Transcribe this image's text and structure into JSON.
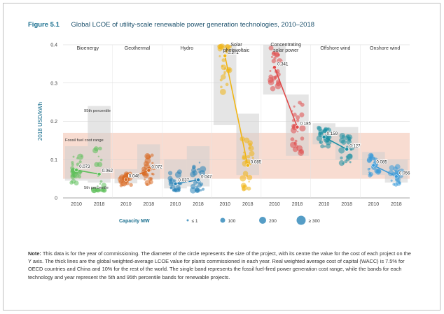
{
  "figure": {
    "number": "Figure 5.1",
    "title": "Global LCOE of utility-scale renewable power generation technologies, 2010–2018"
  },
  "note": {
    "label": "Note:",
    "text": "This data is for the year of commissioning. The diameter of the circle represents the size of the project, with its centre the value for the cost of each project on the Y axis. The thick lines are the global weighted-average LCOE value for plants commissioned in each year. Real weighted average cost of capital (WACC) is 7.5% for OECD countries and China and 10% for the rest of the world. The single band represents the fossil fuel-fired power generation cost range, while the bands for each technology and year represent the 5th and 95th percentile bands for renewable projects."
  },
  "colors": {
    "title": "#1a6f8f",
    "bioenergy": "#5cbf5a",
    "geothermal": "#d86a22",
    "hydro": "#2a84b8",
    "solar_pv": "#f0b514",
    "csp": "#e04a4a",
    "offshore_wind": "#1b8fa3",
    "onshore_wind": "#3a9ad8",
    "fossil_band": "#f7d6c9",
    "percentile_band": "#cfcfcf"
  },
  "chart_data": {
    "type": "scatter",
    "ylabel": "2018 USD/kWh",
    "ylim": [
      0,
      0.4
    ],
    "yticks": [
      "0",
      "0.1",
      "0.2",
      "0.3",
      "0.4"
    ],
    "fossil_range": [
      0.05,
      0.17
    ],
    "technologies": [
      {
        "key": "bioenergy",
        "name": "Bioenergy",
        "x": [
          "2010",
          "2018"
        ],
        "wavg": [
          0.073,
          0.062
        ],
        "p5": [
          0.045,
          0.04
        ],
        "p95": [
          0.135,
          0.24
        ]
      },
      {
        "key": "geothermal",
        "name": "Geothermal",
        "x": [
          "2010",
          "2018"
        ],
        "wavg": [
          0.048,
          0.072
        ],
        "p5": [
          0.038,
          0.048
        ],
        "p95": [
          0.075,
          0.14
        ]
      },
      {
        "key": "hydro",
        "name": "Hydro",
        "x": [
          "2010",
          "2018"
        ],
        "wavg": [
          0.037,
          0.047
        ],
        "p5": [
          0.025,
          0.03
        ],
        "p95": [
          0.1,
          0.135
        ]
      },
      {
        "key": "solar_pv",
        "name": "Solar photovoltaic",
        "x": [
          "2010",
          "2018"
        ],
        "wavg": [
          0.371,
          0.085
        ],
        "p5": [
          0.19,
          0.06
        ],
        "p95": [
          0.4,
          0.22
        ]
      },
      {
        "key": "csp",
        "name": "Concentrating solar power",
        "x": [
          "2010",
          "2018"
        ],
        "wavg": [
          0.341,
          0.185
        ],
        "p5": [
          0.27,
          0.11
        ],
        "p95": [
          0.4,
          0.27
        ]
      },
      {
        "key": "offshore_wind",
        "name": "Offshore wind",
        "x": [
          "2010",
          "2018"
        ],
        "wavg": [
          0.159,
          0.127
        ],
        "p5": [
          0.14,
          0.1
        ],
        "p95": [
          0.195,
          0.185
        ]
      },
      {
        "key": "onshore_wind",
        "name": "Onshore wind",
        "x": [
          "2010",
          "2018"
        ],
        "wavg": [
          0.085,
          0.056
        ],
        "p5": [
          0.06,
          0.04
        ],
        "p95": [
          0.12,
          0.1
        ]
      }
    ],
    "annotations": [
      "95th percentile",
      "Fossil fuel cost range",
      "5th percentile"
    ],
    "legend": {
      "title": "Capacity MW",
      "entries": [
        "≤ 1",
        "100",
        "200",
        "≥ 300"
      ],
      "placement": "bottom"
    }
  }
}
